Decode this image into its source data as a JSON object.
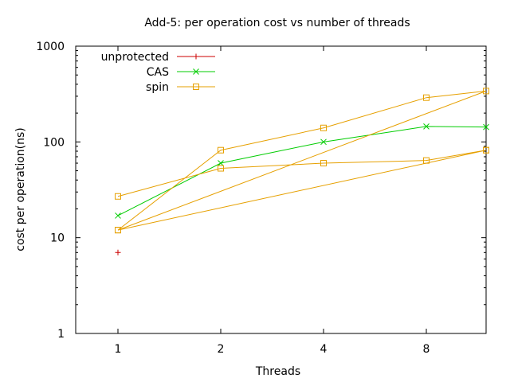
{
  "chart_data": {
    "type": "line",
    "title": "Add-5: per operation cost vs number of threads",
    "xlabel": "Threads",
    "ylabel": "cost per operation(ns)",
    "x_scale": "log2",
    "y_scale": "log10",
    "xlim": [
      0.5,
      12
    ],
    "ylim": [
      1,
      1000
    ],
    "x_ticks": [
      {
        "value": 1,
        "label": "1"
      },
      {
        "value": 2,
        "label": "2"
      },
      {
        "value": 4,
        "label": "4"
      },
      {
        "value": 8,
        "label": "8"
      }
    ],
    "y_ticks": [
      {
        "value": 1,
        "label": "1"
      },
      {
        "value": 10,
        "label": "10"
      },
      {
        "value": 100,
        "label": "100"
      },
      {
        "value": 1000,
        "label": "1000"
      }
    ],
    "grid": false,
    "legend_position": "top-left",
    "series": [
      {
        "name": "unprotected",
        "color": "#cc0000",
        "marker": "plus",
        "points": [
          [
            1,
            7
          ]
        ]
      },
      {
        "name": "CAS",
        "color": "#00cc00",
        "marker": "cross",
        "points": [
          [
            1,
            17
          ],
          [
            2,
            60
          ],
          [
            4,
            100
          ],
          [
            8,
            145
          ],
          [
            12,
            143
          ]
        ]
      },
      {
        "name": "spin",
        "color": "#e6a000",
        "marker": "square",
        "points": [
          [
            1,
            27
          ],
          [
            2,
            53
          ],
          [
            4,
            60
          ],
          [
            8,
            64
          ],
          [
            12,
            82
          ],
          [
            1,
            12
          ],
          [
            2,
            82
          ],
          [
            4,
            140
          ],
          [
            8,
            290
          ],
          [
            12,
            340
          ],
          [
            1,
            12
          ],
          [
            12,
            82
          ]
        ]
      }
    ]
  }
}
